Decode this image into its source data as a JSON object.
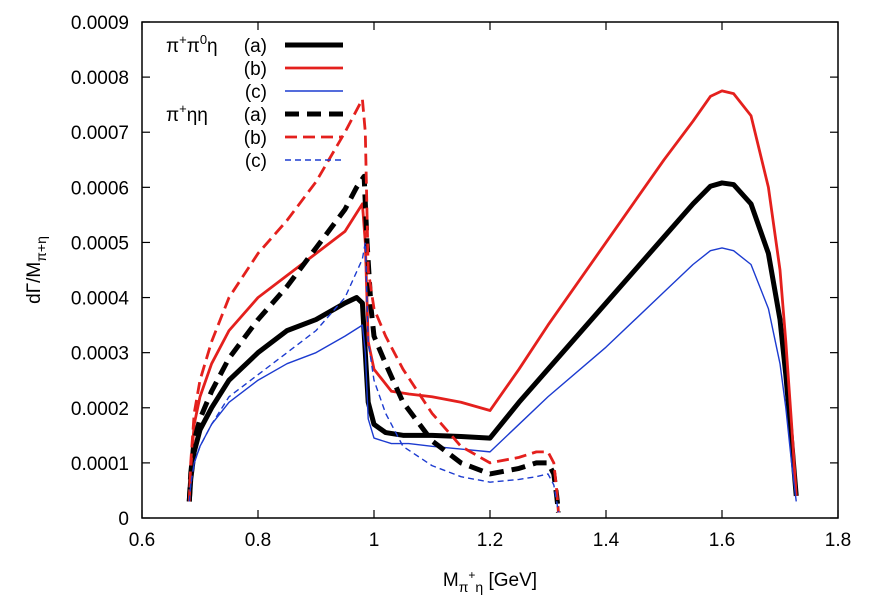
{
  "chart_data": {
    "type": "line",
    "xlabel": {
      "main": "M",
      "sub_a": "π",
      "sup": "+",
      "sub_b": "η",
      "unit": " [GeV]"
    },
    "ylabel": {
      "main": "dΓ/M",
      "sub": "π+η"
    },
    "xlim": [
      0.6,
      1.8
    ],
    "ylim": [
      0,
      0.0009
    ],
    "xticks": [
      0.6,
      0.8,
      1,
      1.2,
      1.4,
      1.6,
      1.8
    ],
    "xtick_labels": [
      "0.6",
      "0.8",
      "1",
      "1.2",
      "1.4",
      "1.6",
      "1.8"
    ],
    "yticks": [
      0,
      0.0001,
      0.0002,
      0.0003,
      0.0004,
      0.0005,
      0.0006,
      0.0007,
      0.0008,
      0.0009
    ],
    "ytick_labels": [
      "0",
      "0.0001",
      "0.0002",
      "0.0003",
      "0.0004",
      "0.0005",
      "0.0006",
      "0.0007",
      "0.0008",
      "0.0009"
    ],
    "grid": false,
    "legend_position": "top-left",
    "legend_groups": [
      {
        "label_parts": [
          "π",
          "+",
          "π",
          "0",
          "η"
        ]
      },
      {
        "label_parts": [
          "π",
          "+",
          "ηη"
        ]
      }
    ],
    "series": [
      {
        "name": "(a)",
        "group": 0,
        "color": "#000000",
        "width": 5,
        "dash": "",
        "points": [
          [
            0.6815,
            3e-05
          ],
          [
            0.684,
            7e-05
          ],
          [
            0.69,
            0.00012
          ],
          [
            0.7,
            0.00016
          ],
          [
            0.72,
            0.0002
          ],
          [
            0.75,
            0.00025
          ],
          [
            0.8,
            0.0003
          ],
          [
            0.85,
            0.00034
          ],
          [
            0.9,
            0.00036
          ],
          [
            0.95,
            0.00039
          ],
          [
            0.97,
            0.0004
          ],
          [
            0.98,
            0.00039
          ],
          [
            0.985,
            0.0003
          ],
          [
            0.99,
            0.00021
          ],
          [
            1.0,
            0.00017
          ],
          [
            1.02,
            0.000155
          ],
          [
            1.05,
            0.00015
          ],
          [
            1.1,
            0.00015
          ],
          [
            1.15,
            0.000148
          ],
          [
            1.2,
            0.000145
          ],
          [
            1.25,
            0.00021
          ],
          [
            1.3,
            0.00027
          ],
          [
            1.4,
            0.00039
          ],
          [
            1.5,
            0.00051
          ],
          [
            1.55,
            0.00057
          ],
          [
            1.58,
            0.000602
          ],
          [
            1.6,
            0.000608
          ],
          [
            1.62,
            0.000605
          ],
          [
            1.65,
            0.00057
          ],
          [
            1.68,
            0.00048
          ],
          [
            1.7,
            0.00036
          ],
          [
            1.71,
            0.00026
          ],
          [
            1.72,
            0.00014
          ],
          [
            1.728,
            4e-05
          ]
        ]
      },
      {
        "name": "(b)",
        "group": 0,
        "color": "#e4201d",
        "width": 2.8,
        "dash": "",
        "points": [
          [
            0.6815,
            3e-05
          ],
          [
            0.684,
            9e-05
          ],
          [
            0.69,
            0.00017
          ],
          [
            0.7,
            0.00022
          ],
          [
            0.72,
            0.00028
          ],
          [
            0.75,
            0.00034
          ],
          [
            0.8,
            0.0004
          ],
          [
            0.85,
            0.00044
          ],
          [
            0.9,
            0.00048
          ],
          [
            0.95,
            0.00052
          ],
          [
            0.98,
            0.00057
          ],
          [
            0.985,
            0.0005
          ],
          [
            0.99,
            0.00032
          ],
          [
            1.0,
            0.00027
          ],
          [
            1.03,
            0.00023
          ],
          [
            1.06,
            0.000225
          ],
          [
            1.1,
            0.00022
          ],
          [
            1.15,
            0.00021
          ],
          [
            1.2,
            0.000195
          ],
          [
            1.25,
            0.00027
          ],
          [
            1.3,
            0.00035
          ],
          [
            1.4,
            0.0005
          ],
          [
            1.5,
            0.00065
          ],
          [
            1.55,
            0.00072
          ],
          [
            1.58,
            0.000765
          ],
          [
            1.6,
            0.000775
          ],
          [
            1.62,
            0.00077
          ],
          [
            1.65,
            0.00073
          ],
          [
            1.68,
            0.0006
          ],
          [
            1.7,
            0.00045
          ],
          [
            1.71,
            0.00032
          ],
          [
            1.72,
            0.00017
          ],
          [
            1.728,
            4e-05
          ]
        ]
      },
      {
        "name": "(c)",
        "group": 0,
        "color": "#1c3bd0",
        "width": 1.4,
        "dash": "",
        "points": [
          [
            0.6815,
            3e-05
          ],
          [
            0.684,
            6e-05
          ],
          [
            0.69,
            0.0001
          ],
          [
            0.7,
            0.00013
          ],
          [
            0.72,
            0.00017
          ],
          [
            0.75,
            0.00021
          ],
          [
            0.8,
            0.00025
          ],
          [
            0.85,
            0.00028
          ],
          [
            0.9,
            0.0003
          ],
          [
            0.95,
            0.00033
          ],
          [
            0.98,
            0.00035
          ],
          [
            0.985,
            0.0003
          ],
          [
            0.99,
            0.00018
          ],
          [
            1.0,
            0.000145
          ],
          [
            1.03,
            0.000135
          ],
          [
            1.06,
            0.000135
          ],
          [
            1.1,
            0.00013
          ],
          [
            1.15,
            0.000125
          ],
          [
            1.2,
            0.00012
          ],
          [
            1.25,
            0.00017
          ],
          [
            1.3,
            0.00022
          ],
          [
            1.4,
            0.00031
          ],
          [
            1.5,
            0.00041
          ],
          [
            1.55,
            0.00046
          ],
          [
            1.58,
            0.000485
          ],
          [
            1.6,
            0.00049
          ],
          [
            1.62,
            0.000485
          ],
          [
            1.65,
            0.00046
          ],
          [
            1.68,
            0.00038
          ],
          [
            1.7,
            0.00028
          ],
          [
            1.71,
            0.0002
          ],
          [
            1.72,
            0.0001
          ],
          [
            1.728,
            3e-05
          ]
        ]
      },
      {
        "name": "(a)",
        "group": 1,
        "color": "#000000",
        "width": 5,
        "dash": "14,8",
        "points": [
          [
            0.6815,
            3e-05
          ],
          [
            0.684,
            8e-05
          ],
          [
            0.69,
            0.00014
          ],
          [
            0.7,
            0.00018
          ],
          [
            0.72,
            0.00023
          ],
          [
            0.75,
            0.00029
          ],
          [
            0.8,
            0.00036
          ],
          [
            0.85,
            0.00042
          ],
          [
            0.9,
            0.00049
          ],
          [
            0.95,
            0.00056
          ],
          [
            0.97,
            0.0006
          ],
          [
            0.983,
            0.00062
          ],
          [
            0.988,
            0.0005
          ],
          [
            0.995,
            0.00038
          ],
          [
            1.0,
            0.00033
          ],
          [
            1.02,
            0.00028
          ],
          [
            1.05,
            0.00021
          ],
          [
            1.1,
            0.00014
          ],
          [
            1.15,
            0.0001
          ],
          [
            1.2,
            8e-05
          ],
          [
            1.25,
            9e-05
          ],
          [
            1.28,
            0.0001
          ],
          [
            1.3,
            0.0001
          ],
          [
            1.31,
            8e-05
          ],
          [
            1.315,
            4e-05
          ],
          [
            1.318,
            1e-05
          ]
        ]
      },
      {
        "name": "(b)",
        "group": 1,
        "color": "#e4201d",
        "width": 2.8,
        "dash": "12,6",
        "points": [
          [
            0.6815,
            3e-05
          ],
          [
            0.684,
            0.0001
          ],
          [
            0.69,
            0.00019
          ],
          [
            0.7,
            0.00025
          ],
          [
            0.72,
            0.00032
          ],
          [
            0.75,
            0.0004
          ],
          [
            0.8,
            0.00048
          ],
          [
            0.85,
            0.00054
          ],
          [
            0.9,
            0.00061
          ],
          [
            0.95,
            0.0007
          ],
          [
            0.98,
            0.00076
          ],
          [
            0.985,
            0.0007
          ],
          [
            0.99,
            0.00045
          ],
          [
            1.0,
            0.00038
          ],
          [
            1.02,
            0.00033
          ],
          [
            1.05,
            0.00027
          ],
          [
            1.1,
            0.00019
          ],
          [
            1.15,
            0.00013
          ],
          [
            1.2,
            0.0001
          ],
          [
            1.25,
            0.00011
          ],
          [
            1.28,
            0.00012
          ],
          [
            1.3,
            0.00012
          ],
          [
            1.31,
            0.0001
          ],
          [
            1.315,
            5e-05
          ],
          [
            1.318,
            1e-05
          ]
        ]
      },
      {
        "name": "(c)",
        "group": 1,
        "color": "#1c3bd0",
        "width": 1.4,
        "dash": "6,4",
        "points": [
          [
            0.6815,
            3e-05
          ],
          [
            0.684,
            6e-05
          ],
          [
            0.69,
            0.0001
          ],
          [
            0.7,
            0.00013
          ],
          [
            0.72,
            0.00017
          ],
          [
            0.75,
            0.00022
          ],
          [
            0.8,
            0.00026
          ],
          [
            0.85,
            0.0003
          ],
          [
            0.9,
            0.00034
          ],
          [
            0.95,
            0.0004
          ],
          [
            0.98,
            0.00047
          ],
          [
            0.985,
            0.0005
          ],
          [
            0.99,
            0.00032
          ],
          [
            1.0,
            0.00025
          ],
          [
            1.02,
            0.00019
          ],
          [
            1.05,
            0.00013
          ],
          [
            1.1,
            9.5e-05
          ],
          [
            1.15,
            7.5e-05
          ],
          [
            1.2,
            6.5e-05
          ],
          [
            1.25,
            7e-05
          ],
          [
            1.28,
            7.5e-05
          ],
          [
            1.3,
            8e-05
          ],
          [
            1.31,
            6e-05
          ],
          [
            1.315,
            3e-05
          ],
          [
            1.318,
            1e-05
          ]
        ]
      }
    ]
  }
}
